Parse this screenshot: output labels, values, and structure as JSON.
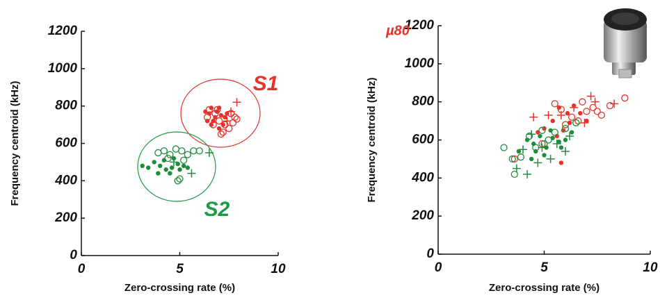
{
  "chart_data": [
    {
      "type": "scatter",
      "xlabel": "Zero-crossing rate (%)",
      "ylabel": "Frequency centroid (kHz)",
      "xlim": [
        0,
        10
      ],
      "ylim": [
        0,
        1200
      ],
      "xticks": [
        0,
        5,
        10
      ],
      "yticks": [
        0,
        200,
        400,
        600,
        800,
        1000,
        1200
      ],
      "annotations": [
        {
          "text": "S1",
          "color": "#e8312a"
        },
        {
          "text": "S2",
          "color": "#1e9a45"
        }
      ],
      "series": [
        {
          "color": "#e8312a",
          "marker": "o",
          "x": [
            6.5,
            6.8,
            7.0,
            7.3,
            7.6,
            7.8,
            7.5,
            7.2,
            6.9,
            7.7,
            7.1,
            6.4,
            7.9,
            6.7
          ],
          "values": [
            780,
            760,
            720,
            700,
            760,
            740,
            680,
            660,
            780,
            710,
            650,
            740,
            730,
            700
          ]
        },
        {
          "color": "#e8312a",
          "marker": "+",
          "x": [
            7.9,
            7.6,
            7.4
          ],
          "values": [
            820,
            770,
            720
          ]
        },
        {
          "color": "#e8312a",
          "marker": ".",
          "x": [
            6.3,
            6.5,
            6.6,
            6.8,
            6.9,
            7.0,
            7.1,
            6.7,
            7.2,
            7.3,
            7.0,
            6.6,
            7.4,
            6.4
          ],
          "values": [
            770,
            760,
            790,
            740,
            770,
            790,
            750,
            720,
            700,
            740,
            680,
            700,
            760,
            720
          ]
        },
        {
          "color": "#1e8c3a",
          "marker": "o",
          "x": [
            3.9,
            4.2,
            4.5,
            4.8,
            5.1,
            5.4,
            5.7,
            6.0,
            4.9,
            5.0,
            4.4,
            5.2
          ],
          "values": [
            550,
            560,
            540,
            570,
            560,
            540,
            560,
            560,
            400,
            410,
            520,
            510
          ]
        },
        {
          "color": "#1e8c3a",
          "marker": "+",
          "x": [
            6.5,
            5.6,
            4.7
          ],
          "values": [
            550,
            440,
            500
          ]
        },
        {
          "color": "#1e8c3a",
          "marker": ".",
          "x": [
            3.1,
            3.4,
            3.7,
            4.0,
            4.3,
            4.6,
            4.9,
            5.2,
            4.5,
            5.0,
            4.7,
            4.2,
            5.4,
            3.9
          ],
          "values": [
            480,
            470,
            500,
            480,
            460,
            470,
            490,
            480,
            440,
            460,
            520,
            510,
            470,
            440
          ]
        }
      ]
    },
    {
      "type": "scatter",
      "xlabel": "Zero-crossing rate (%)",
      "ylabel": "Frequency centroid (kHz)",
      "xlim": [
        0,
        10
      ],
      "ylim": [
        0,
        1200
      ],
      "xticks": [
        0,
        5,
        10
      ],
      "yticks": [
        0,
        200,
        400,
        600,
        800,
        1000,
        1200
      ],
      "annotations": [
        {
          "text": "µ80",
          "color": "#e8312a"
        }
      ],
      "series": [
        {
          "color": "#e8312a",
          "marker": "o",
          "x": [
            5.5,
            5.8,
            6.3,
            6.8,
            7.0,
            7.3,
            7.7,
            8.1,
            8.8,
            6.0,
            6.6,
            7.5,
            4.9,
            3.6
          ],
          "values": [
            790,
            760,
            720,
            800,
            750,
            770,
            730,
            780,
            820,
            680,
            700,
            750,
            580,
            500
          ]
        },
        {
          "color": "#e8312a",
          "marker": "+",
          "x": [
            4.5,
            5.2,
            5.8,
            6.4,
            7.2,
            7.4,
            8.3,
            6.9
          ],
          "values": [
            720,
            730,
            730,
            770,
            830,
            800,
            790,
            690
          ]
        },
        {
          "color": "#e8312a",
          "marker": ".",
          "x": [
            5.0,
            5.4,
            5.7,
            6.1,
            6.4,
            6.7,
            7.0,
            5.9,
            6.2,
            5.6,
            4.7,
            5.8
          ],
          "values": [
            660,
            700,
            770,
            740,
            780,
            740,
            700,
            650,
            690,
            620,
            640,
            480
          ]
        },
        {
          "color": "#1e8c3a",
          "marker": "o",
          "x": [
            3.1,
            3.5,
            3.6,
            3.9,
            4.3,
            4.9,
            5.2,
            5.5,
            6.0,
            6.5,
            4.6,
            5.0
          ],
          "values": [
            560,
            500,
            420,
            510,
            620,
            650,
            600,
            640,
            660,
            690,
            560,
            580
          ]
        },
        {
          "color": "#1e8c3a",
          "marker": "+",
          "x": [
            3.7,
            4.0,
            4.2,
            4.4,
            4.9,
            5.3,
            5.6,
            6.0,
            6.2,
            4.7
          ],
          "values": [
            450,
            550,
            420,
            630,
            560,
            500,
            580,
            540,
            620,
            480
          ]
        },
        {
          "color": "#1e8c3a",
          "marker": ".",
          "x": [
            3.8,
            4.2,
            4.5,
            4.8,
            5.1,
            5.4,
            5.7,
            6.0,
            6.3,
            5.0,
            4.6,
            5.8,
            5.3,
            4.4
          ],
          "values": [
            540,
            600,
            580,
            620,
            560,
            610,
            590,
            600,
            640,
            520,
            540,
            560,
            650,
            500
          ]
        }
      ]
    }
  ]
}
